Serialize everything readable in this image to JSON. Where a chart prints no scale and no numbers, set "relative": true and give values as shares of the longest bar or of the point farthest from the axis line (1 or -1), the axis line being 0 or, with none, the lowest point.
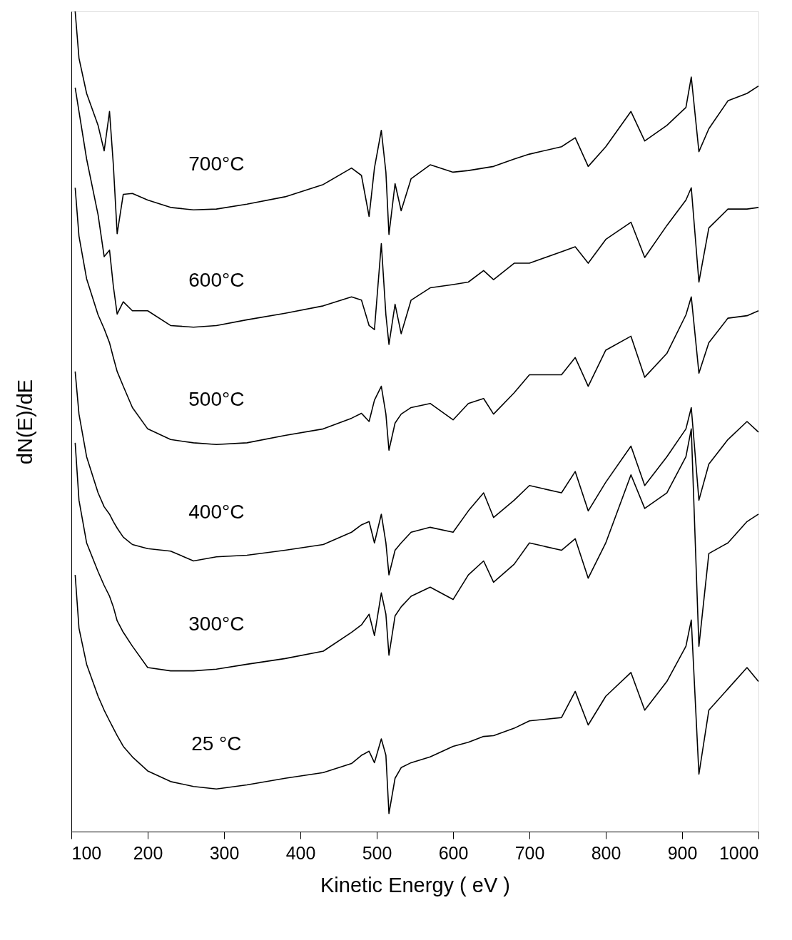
{
  "chart_data": {
    "type": "line",
    "xlabel": "Kinetic Energy ( eV )",
    "ylabel": "dN(E)/dE",
    "relative": true,
    "xlim": [
      100,
      1000
    ],
    "xticks": [
      100,
      200,
      300,
      400,
      500,
      600,
      700,
      800,
      900,
      1000
    ],
    "grid": false,
    "legend": false,
    "marker": "none",
    "line_style": "solid",
    "x": [
      105,
      110,
      120,
      135,
      143,
      150,
      155,
      160,
      168,
      180,
      200,
      230,
      260,
      290,
      330,
      380,
      430,
      467,
      480,
      490,
      497,
      506,
      512,
      516,
      524,
      532,
      545,
      570,
      600,
      620,
      640,
      653,
      680,
      700,
      742,
      760,
      777,
      800,
      833,
      851,
      880,
      905,
      912,
      922,
      935,
      960,
      985,
      1000
    ],
    "series": [
      {
        "name": "700°C",
        "color": "#000000",
        "values": [
          1.0,
          0.943,
          0.9,
          0.861,
          0.83,
          0.878,
          0.813,
          0.729,
          0.777,
          0.778,
          0.77,
          0.761,
          0.758,
          0.759,
          0.765,
          0.774,
          0.789,
          0.809,
          0.8,
          0.75,
          0.809,
          0.855,
          0.804,
          0.728,
          0.79,
          0.757,
          0.796,
          0.813,
          0.804,
          0.806,
          0.809,
          0.811,
          0.82,
          0.826,
          0.835,
          0.846,
          0.811,
          0.835,
          0.878,
          0.842,
          0.861,
          0.883,
          0.92,
          0.829,
          0.857,
          0.891,
          0.9,
          0.909
        ]
      },
      {
        "name": "600°C",
        "color": "#000000",
        "values": [
          0.907,
          0.878,
          0.82,
          0.752,
          0.701,
          0.709,
          0.665,
          0.631,
          0.646,
          0.635,
          0.635,
          0.617,
          0.615,
          0.617,
          0.624,
          0.632,
          0.641,
          0.652,
          0.648,
          0.617,
          0.612,
          0.717,
          0.63,
          0.594,
          0.643,
          0.607,
          0.648,
          0.663,
          0.667,
          0.67,
          0.684,
          0.673,
          0.693,
          0.693,
          0.707,
          0.713,
          0.693,
          0.722,
          0.743,
          0.7,
          0.739,
          0.77,
          0.785,
          0.67,
          0.736,
          0.759,
          0.759,
          0.761
        ]
      },
      {
        "name": "500°C",
        "color": "#000000",
        "values": [
          0.785,
          0.726,
          0.674,
          0.63,
          0.613,
          0.596,
          0.578,
          0.561,
          0.543,
          0.517,
          0.491,
          0.478,
          0.474,
          0.472,
          0.474,
          0.483,
          0.491,
          0.504,
          0.51,
          0.5,
          0.526,
          0.543,
          0.509,
          0.465,
          0.498,
          0.509,
          0.517,
          0.522,
          0.502,
          0.522,
          0.528,
          0.509,
          0.535,
          0.557,
          0.557,
          0.578,
          0.543,
          0.587,
          0.604,
          0.554,
          0.583,
          0.63,
          0.652,
          0.559,
          0.596,
          0.626,
          0.629,
          0.635
        ]
      },
      {
        "name": "400°C",
        "color": "#000000",
        "values": [
          0.561,
          0.509,
          0.457,
          0.413,
          0.396,
          0.387,
          0.378,
          0.37,
          0.359,
          0.35,
          0.345,
          0.342,
          0.33,
          0.335,
          0.337,
          0.343,
          0.35,
          0.365,
          0.374,
          0.378,
          0.352,
          0.387,
          0.352,
          0.313,
          0.343,
          0.352,
          0.365,
          0.371,
          0.365,
          0.391,
          0.413,
          0.383,
          0.404,
          0.422,
          0.413,
          0.439,
          0.391,
          0.426,
          0.47,
          0.422,
          0.457,
          0.491,
          0.517,
          0.404,
          0.448,
          0.478,
          0.5,
          0.487
        ]
      },
      {
        "name": "300°C",
        "color": "#000000",
        "values": [
          0.474,
          0.404,
          0.352,
          0.317,
          0.3,
          0.287,
          0.274,
          0.257,
          0.243,
          0.226,
          0.2,
          0.196,
          0.196,
          0.198,
          0.204,
          0.211,
          0.22,
          0.243,
          0.252,
          0.265,
          0.239,
          0.291,
          0.265,
          0.215,
          0.263,
          0.274,
          0.287,
          0.298,
          0.283,
          0.313,
          0.33,
          0.304,
          0.326,
          0.352,
          0.343,
          0.357,
          0.309,
          0.352,
          0.435,
          0.394,
          0.413,
          0.457,
          0.491,
          0.226,
          0.339,
          0.352,
          0.378,
          0.387
        ]
      },
      {
        "name": "25 °C",
        "color": "#000000",
        "values": [
          0.313,
          0.248,
          0.204,
          0.165,
          0.148,
          0.135,
          0.126,
          0.117,
          0.104,
          0.091,
          0.074,
          0.061,
          0.055,
          0.052,
          0.057,
          0.065,
          0.072,
          0.083,
          0.093,
          0.098,
          0.084,
          0.113,
          0.093,
          0.022,
          0.065,
          0.078,
          0.084,
          0.091,
          0.104,
          0.109,
          0.116,
          0.117,
          0.126,
          0.135,
          0.139,
          0.171,
          0.13,
          0.165,
          0.194,
          0.148,
          0.183,
          0.226,
          0.258,
          0.07,
          0.148,
          0.174,
          0.2,
          0.183
        ]
      }
    ]
  }
}
